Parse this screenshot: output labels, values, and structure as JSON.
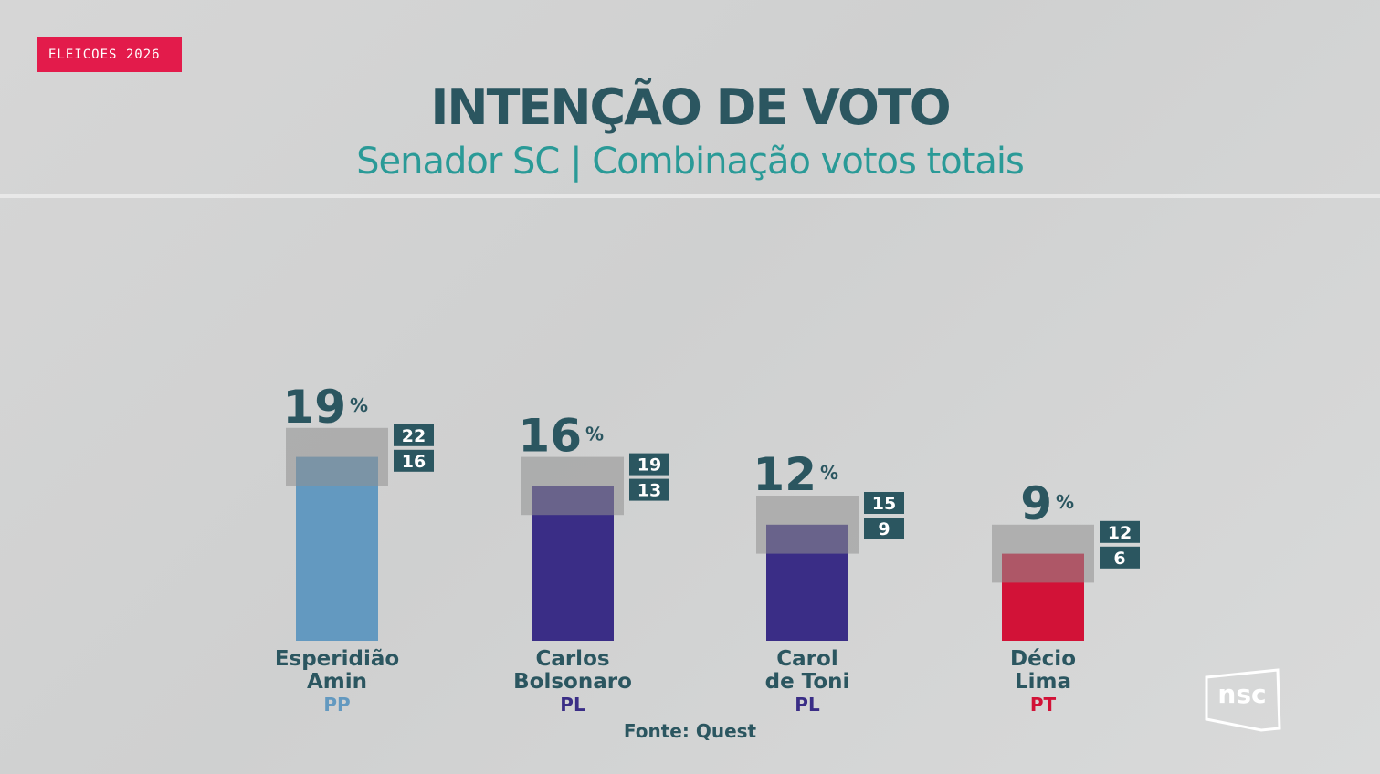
{
  "tag": "ELEICOES 2026",
  "title": "INTENÇÃO DE VOTO",
  "subtitle": "Senador SC | Combinação votos totais",
  "source": "Fonte: Quest",
  "logo_text": "nsc",
  "chart_data": {
    "type": "bar",
    "ylim": [
      0,
      25
    ],
    "unit": "%",
    "grid": false,
    "categories": [
      {
        "name_line1": "Esperidião",
        "name_line2": "Amin",
        "party": "PP",
        "value": 19,
        "high": 22,
        "low": 16,
        "color": "#6399c0",
        "party_color": "#6399c0"
      },
      {
        "name_line1": "Carlos",
        "name_line2": "Bolsonaro",
        "party": "PL",
        "value": 16,
        "high": 19,
        "low": 13,
        "color": "#3a2d86",
        "party_color": "#3a2d86"
      },
      {
        "name_line1": "Carol",
        "name_line2": "de Toni",
        "party": "PL",
        "value": 12,
        "high": 15,
        "low": 9,
        "color": "#3a2d86",
        "party_color": "#3a2d86"
      },
      {
        "name_line1": "Décio",
        "name_line2": "Lima",
        "party": "PT",
        "value": 9,
        "high": 12,
        "low": 6,
        "color": "#d21237",
        "party_color": "#d21237"
      }
    ]
  }
}
